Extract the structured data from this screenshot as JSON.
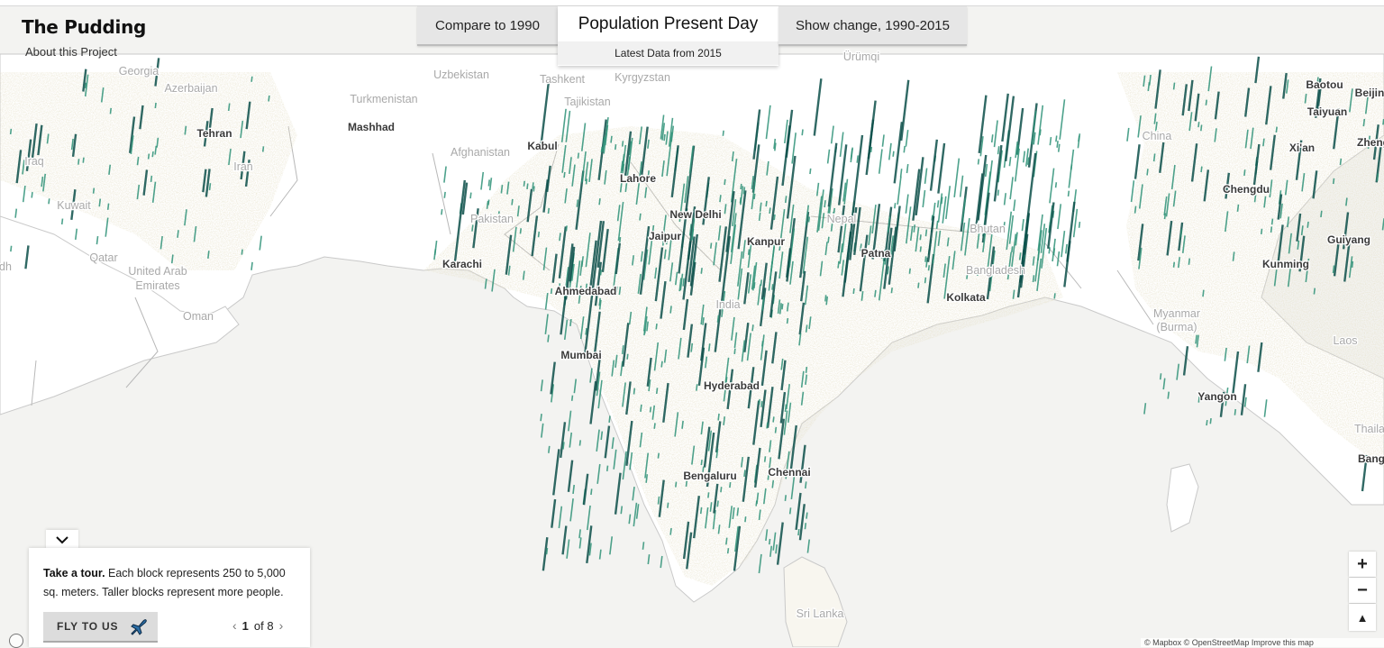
{
  "brand": {
    "title": "The Pudding",
    "about": "About this Project"
  },
  "tabs": {
    "compare": "Compare to 1990",
    "present_title": "Population Present Day",
    "present_sub": "Latest Data from 2015",
    "change": "Show change, 1990-2015"
  },
  "map_labels": {
    "major": [
      "Karachi",
      "Ahmedabad",
      "Mumbai",
      "New Delhi",
      "Jaipur",
      "Kanpur",
      "Patna",
      "Kolkata",
      "Hyderabad",
      "Bengaluru",
      "Chennai",
      "Lahore",
      "Kabul",
      "Tehran",
      "Mashhad",
      "Chengdu",
      "Kunming",
      "Yangon",
      "Xi'an",
      "Guiyang",
      "Taiyuan",
      "Baotou",
      "Bang",
      "Beijin",
      "Zheng"
    ],
    "country": [
      "India",
      "Pakistan",
      "Afghanistan",
      "Iran",
      "Nepal",
      "Bhutan",
      "Bangladesh",
      "Myanmar",
      "(Burma)",
      "Oman",
      "United Arab",
      "Emirates",
      "Qatar",
      "Kuwait",
      "Iraq",
      "Turkmenistan",
      "Uzbekistan",
      "Kyrgyzstan",
      "Tajikistan",
      "Georgia",
      "Azerbaijan",
      "China",
      "Laos",
      "Thaila",
      "Sri Lanka",
      "Tashkent",
      "Ürümqi",
      "dh"
    ]
  },
  "tour": {
    "toggle_icon": "chevron-down-icon",
    "bold": "Take a tour.",
    "text": " Each block represents 250 to 5,000 sq. meters. Taller blocks represent more people.",
    "fly_label": "FLY TO US",
    "page_current": "1",
    "page_of": "of 8"
  },
  "controls": {
    "zoom_in": "+",
    "zoom_out": "−",
    "compass": "▲"
  },
  "attribution": "© Mapbox © OpenStreetMap Improve this map",
  "colors": {
    "spike_light": "#2f9278",
    "spike_dark": "#0c4f4a",
    "land": "#ffffff",
    "sea": "#f3f3f1",
    "density": "#cdbf94"
  }
}
